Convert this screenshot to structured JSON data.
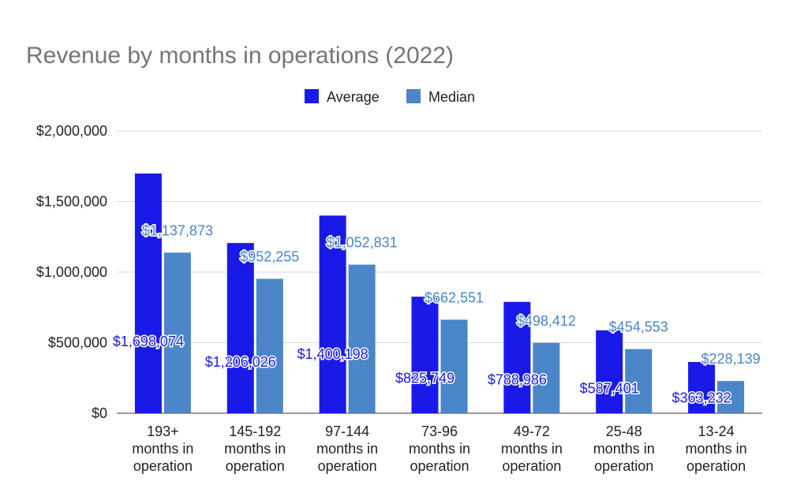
{
  "chart_data": {
    "type": "bar",
    "title": "Revenue by months in operations (2022)",
    "xlabel": "",
    "ylabel": "",
    "ylim": [
      0,
      2000000
    ],
    "yticks": [
      0,
      500000,
      1000000,
      1500000,
      2000000
    ],
    "ytick_labels": [
      "$0",
      "$500,000",
      "$1,000,000",
      "$1,500,000",
      "$2,000,000"
    ],
    "grid": true,
    "legend_position": "top",
    "categories": [
      [
        "193+",
        "months in",
        "operation"
      ],
      [
        "145-192",
        "months in",
        "operation"
      ],
      [
        "97-144",
        "months in",
        "operation"
      ],
      [
        "73-96",
        "months in",
        "operation"
      ],
      [
        "49-72",
        "months in",
        "operation"
      ],
      [
        "25-48",
        "months in",
        "operation"
      ],
      [
        "13-24",
        "months in",
        "operation"
      ]
    ],
    "series": [
      {
        "name": "Average",
        "color": "#1a1ae8",
        "values": [
          1698074,
          1206026,
          1400198,
          825749,
          788986,
          587401,
          363232
        ],
        "labels": [
          "$1,698,074",
          "$1,206,026",
          "$1,400,198",
          "$825,749",
          "$788,986",
          "$587,401",
          "$363,232"
        ]
      },
      {
        "name": "Median",
        "color": "#4a86c8",
        "values": [
          1137873,
          952255,
          1052831,
          662551,
          498412,
          454553,
          228139
        ],
        "labels": [
          "$1,137,873",
          "$952,255",
          "$1,052,831",
          "$662,551",
          "$498,412",
          "$454,553",
          "$228,139"
        ]
      }
    ]
  }
}
